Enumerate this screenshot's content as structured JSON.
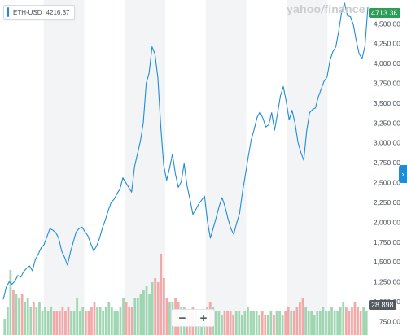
{
  "watermark": {
    "brand": "yahoo",
    "slash": "/",
    "suffix": "finance"
  },
  "ticker": {
    "symbol": "ETH-USD",
    "value": "4216.37",
    "accent": "#1f8dd6"
  },
  "last_price": {
    "label": "4713.36",
    "direction_icon": "caret-up-icon",
    "color": "#2d9d58"
  },
  "volume_label": "28.898",
  "side_tab": {
    "icon": "chevron-right-icon",
    "glyph": "›"
  },
  "zoom": {
    "minus": "−",
    "plus": "+"
  },
  "chart_data": {
    "type": "line",
    "title": "",
    "xlabel": "",
    "ylabel": "",
    "ylim": [
      580,
      4800
    ],
    "yticks": [
      750,
      1000,
      1250,
      1500,
      1750,
      2000,
      2250,
      2500,
      2750,
      3000,
      3250,
      3500,
      3750,
      4000,
      4250,
      4500
    ],
    "ytick_labels": [
      "750.00",
      "1,000.00",
      "1,250.00",
      "1,500.00",
      "1,750.00",
      "2,000.00",
      "2,250.00",
      "2,500.00",
      "2,750.00",
      "3,000.00",
      "3,250.00",
      "3,500.00",
      "3,750.00",
      "4,000.00",
      "4,250.00",
      "4,500.00"
    ],
    "grid": "alternating vertical bands",
    "series": [
      {
        "name": "ETH-USD",
        "color": "#1f8dd6",
        "x": [
          0,
          0.8,
          1.6,
          2.4,
          3.2,
          4,
          4.8,
          5.6,
          6.4,
          7.2,
          8,
          8.8,
          9.6,
          10.4,
          11.2,
          12,
          12.8,
          13.6,
          14.4,
          15.2,
          16,
          16.8,
          17.6,
          18.4,
          19.2,
          20,
          20.8,
          21.6,
          22.4,
          23.2,
          24,
          24.8,
          25.6,
          26.4,
          27.2,
          28,
          28.8,
          29.6,
          30.4,
          31.2,
          32,
          32.8,
          33.6,
          34.4,
          35.2,
          36,
          36.8,
          37.6,
          38.4,
          39.2,
          40,
          40.8,
          41.6,
          42.4,
          43.2,
          44,
          44.8,
          45.6,
          46.4,
          47.2,
          48,
          48.8,
          49.6,
          50.4,
          51.2,
          52,
          52.8,
          53.6,
          54.4,
          55.2,
          56,
          56.8,
          57.6,
          58.4,
          59.2,
          60,
          60.8,
          61.6,
          62.4,
          63.2,
          64,
          64.8,
          65.6,
          66.4,
          67.2,
          68,
          68.8,
          69.6,
          70.4,
          71.2,
          72,
          72.8,
          73.6,
          74.4,
          75.2,
          76,
          76.8,
          77.6,
          78.4,
          79.2,
          80,
          80.8,
          81.6,
          82.4,
          83.2,
          84,
          84.8,
          85.6,
          86.4,
          87.2,
          88,
          88.8,
          89.6,
          90.4,
          91.2,
          92,
          92.8,
          93.6,
          94.4,
          95.2,
          96,
          96.8,
          97.6,
          98.4,
          99.2,
          100
        ],
        "values": [
          1030,
          1180,
          1250,
          1220,
          1260,
          1330,
          1310,
          1380,
          1420,
          1450,
          1390,
          1530,
          1600,
          1680,
          1720,
          1820,
          1920,
          1900,
          1870,
          1800,
          1640,
          1560,
          1460,
          1620,
          1750,
          1880,
          1920,
          1940,
          1880,
          1830,
          1730,
          1640,
          1700,
          1800,
          1930,
          2030,
          2150,
          2250,
          2290,
          2360,
          2420,
          2560,
          2500,
          2440,
          2380,
          2700,
          2860,
          3020,
          3250,
          3750,
          3880,
          4210,
          4120,
          3820,
          3200,
          2720,
          2530,
          2680,
          2860,
          2610,
          2440,
          2510,
          2740,
          2460,
          2290,
          2100,
          2160,
          2230,
          2280,
          2330,
          2010,
          1800,
          1930,
          2060,
          2200,
          2310,
          2200,
          2050,
          1920,
          1850,
          1990,
          2110,
          2380,
          2600,
          2830,
          3040,
          3170,
          3320,
          3390,
          3310,
          3200,
          3230,
          3380,
          3160,
          3370,
          3590,
          3710,
          3520,
          3290,
          3410,
          3250,
          3010,
          2880,
          2780,
          3150,
          3380,
          3420,
          3440,
          3580,
          3680,
          3780,
          3830,
          4040,
          4150,
          4210,
          4410,
          4650,
          4760,
          4600,
          4590,
          4490,
          4290,
          4120,
          4060,
          4220,
          4713
        ]
      }
    ],
    "volume": {
      "up_color": "#8fcfa5",
      "down_color": "#ef9a9a",
      "values": [
        0.2,
        0.35,
        0.8,
        0.55,
        0.5,
        0.45,
        0.5,
        0.4,
        0.45,
        0.35,
        0.4,
        0.35,
        0.4,
        0.3,
        0.35,
        0.3,
        0.35,
        0.3,
        0.3,
        0.3,
        0.35,
        0.3,
        0.35,
        0.3,
        0.3,
        0.45,
        0.3,
        0.35,
        0.3,
        0.3,
        0.35,
        0.4,
        0.35,
        0.35,
        0.3,
        0.35,
        0.4,
        0.35,
        0.3,
        0.3,
        0.35,
        0.45,
        0.4,
        0.35,
        0.35,
        0.45,
        0.45,
        0.5,
        0.55,
        0.6,
        0.5,
        0.65,
        0.7,
        0.65,
        1.0,
        0.7,
        0.45,
        0.4,
        0.4,
        0.45,
        0.4,
        0.35,
        0.35,
        0.3,
        0.3,
        0.35,
        0.3,
        0.25,
        0.3,
        0.3,
        0.35,
        0.4,
        0.35,
        0.3,
        0.3,
        0.25,
        0.3,
        0.3,
        0.3,
        0.25,
        0.3,
        0.3,
        0.25,
        0.3,
        0.35,
        0.3,
        0.3,
        0.3,
        0.25,
        0.3,
        0.25,
        0.25,
        0.3,
        0.25,
        0.3,
        0.3,
        0.25,
        0.3,
        0.35,
        0.3,
        0.3,
        0.35,
        0.4,
        0.45,
        0.35,
        0.3,
        0.3,
        0.25,
        0.3,
        0.3,
        0.35,
        0.3,
        0.3,
        0.35,
        0.3,
        0.3,
        0.35,
        0.4,
        0.35,
        0.3,
        0.35,
        0.4,
        0.35,
        0.3,
        0.35,
        0.3
      ]
    }
  }
}
